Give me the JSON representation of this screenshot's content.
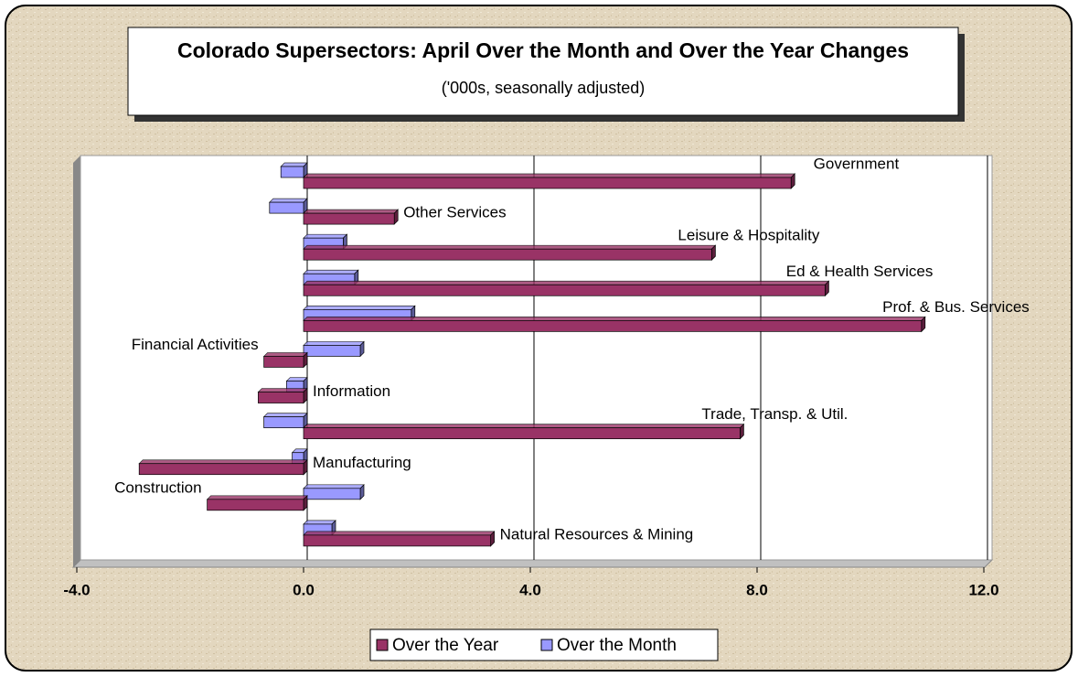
{
  "chart_data": {
    "type": "bar",
    "orientation": "horizontal",
    "title": "Colorado Supersectors: April Over the Month and Over the Year Changes",
    "subtitle": "('000s, seasonally adjusted)",
    "categories": [
      "Government",
      "Other Services",
      "Leisure & Hospitality",
      "Ed & Health Services",
      "Prof. & Bus. Services",
      "Financial Activities",
      "Information",
      "Trade, Transp. & Util.",
      "Manufacturing",
      "Construction",
      "Natural Resources & Mining"
    ],
    "series": [
      {
        "name": "Over the Year",
        "color": "#993366",
        "values": [
          8.6,
          1.6,
          7.2,
          9.2,
          10.9,
          -0.7,
          -0.8,
          7.7,
          -2.9,
          -1.7,
          3.3
        ]
      },
      {
        "name": "Over the Month",
        "color": "#9999ff",
        "values": [
          -0.4,
          -0.6,
          0.7,
          0.9,
          1.9,
          1.0,
          -0.3,
          -0.7,
          -0.2,
          1.0,
          0.5
        ]
      }
    ],
    "xlim": [
      -4,
      12
    ],
    "xticks": [
      {
        "value": -4,
        "label": "-4.0"
      },
      {
        "value": 0,
        "label": "0.0"
      },
      {
        "value": 4,
        "label": "4.0"
      },
      {
        "value": 8,
        "label": "8.0"
      },
      {
        "value": 12,
        "label": "12.0"
      }
    ],
    "grid": true,
    "legend": "bottom"
  }
}
